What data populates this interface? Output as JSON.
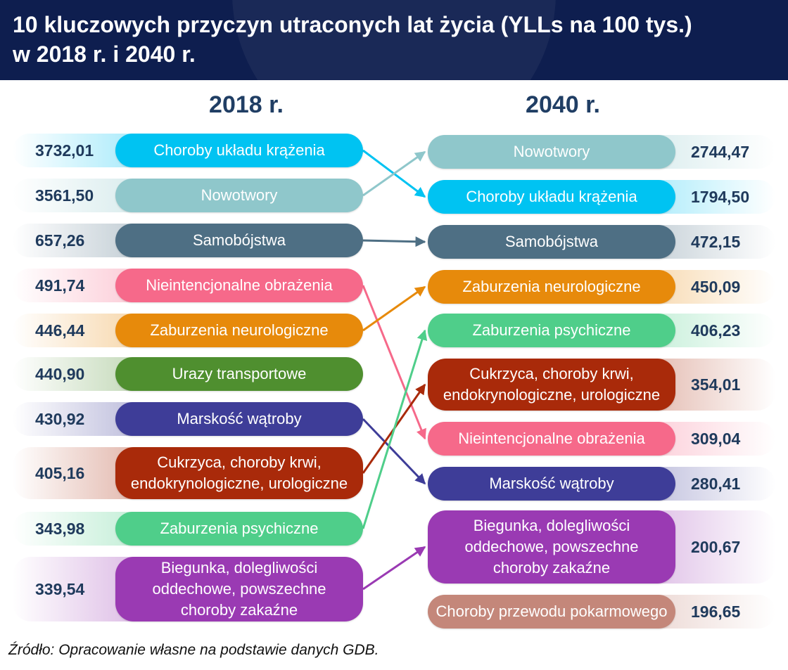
{
  "title": "10 kluczowych przyczyn utraconych lat życia (YLLs na 100 tys.)\nw 2018 r. i 2040 r.",
  "footnote": "Źródło: Opracowanie własne na podstawie danych GDB.",
  "chart_data": {
    "type": "slope",
    "title": "10 kluczowych przyczyn utraconych lat życia (YLLs na 100 tys.) w 2018 r. i 2040 r.",
    "columns": [
      "2018 r.",
      "2040 r."
    ],
    "left": [
      {
        "label": "Choroby układu krążenia",
        "value": "3732,01",
        "color": "#00c3f2"
      },
      {
        "label": "Nowotwory",
        "value": "3561,50",
        "color": "#8fc7cb"
      },
      {
        "label": "Samobójstwa",
        "value": "657,26",
        "color": "#4e6f84"
      },
      {
        "label": "Nieintencjonalne obrażenia",
        "value": "491,74",
        "color": "#f6698a"
      },
      {
        "label": "Zaburzenia neurologiczne",
        "value": "446,44",
        "color": "#e78a0b"
      },
      {
        "label": "Urazy transportowe",
        "value": "440,90",
        "color": "#4f8f2f"
      },
      {
        "label": "Marskość wątroby",
        "value": "430,92",
        "color": "#3e3d98"
      },
      {
        "label": "Cukrzyca, choroby krwi,\nendokrynologiczne, urologiczne",
        "value": "405,16",
        "color": "#a92a0a"
      },
      {
        "label": "Zaburzenia psychiczne",
        "value": "343,98",
        "color": "#4fce8a"
      },
      {
        "label": "Biegunka, dolegliwości\noddechowe, powszechne\nchoroby zakaźne",
        "value": "339,54",
        "color": "#9a3ab3"
      }
    ],
    "right": [
      {
        "label": "Nowotwory",
        "value": "2744,47",
        "color": "#8fc7cb"
      },
      {
        "label": "Choroby układu krążenia",
        "value": "1794,50",
        "color": "#00c3f2"
      },
      {
        "label": "Samobójstwa",
        "value": "472,15",
        "color": "#4e6f84"
      },
      {
        "label": "Zaburzenia neurologiczne",
        "value": "450,09",
        "color": "#e78a0b"
      },
      {
        "label": "Zaburzenia psychiczne",
        "value": "406,23",
        "color": "#4fce8a"
      },
      {
        "label": "Cukrzyca, choroby krwi,\nendokrynologiczne, urologiczne",
        "value": "354,01",
        "color": "#a92a0a"
      },
      {
        "label": "Nieintencjonalne obrażenia",
        "value": "309,04",
        "color": "#f6698a"
      },
      {
        "label": "Marskość wątroby",
        "value": "280,41",
        "color": "#3e3d98"
      },
      {
        "label": "Biegunka, dolegliwości\noddechowe, powszechne\nchoroby zakaźne",
        "value": "200,67",
        "color": "#9a3ab3"
      },
      {
        "label": "Choroby przewodu pokarmowego",
        "value": "196,65",
        "color": "#c4877a"
      }
    ],
    "links": [
      [
        0,
        1
      ],
      [
        1,
        0
      ],
      [
        2,
        2
      ],
      [
        3,
        6
      ],
      [
        4,
        3
      ],
      [
        6,
        7
      ],
      [
        7,
        5
      ],
      [
        8,
        4
      ],
      [
        9,
        8
      ]
    ]
  }
}
